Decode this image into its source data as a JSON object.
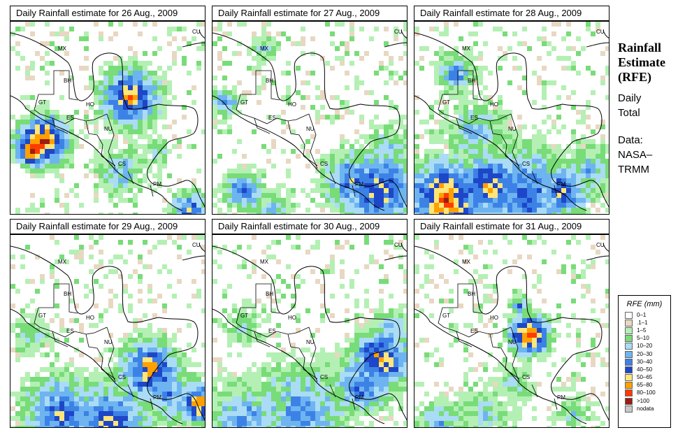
{
  "panels": [
    {
      "title": "Daily Rainfall estimate for  26 Aug., 2009"
    },
    {
      "title": "Daily Rainfall estimate for  27 Aug., 2009"
    },
    {
      "title": "Daily Rainfall estimate for  28 Aug., 2009"
    },
    {
      "title": "Daily Rainfall estimate for  29 Aug., 2009"
    },
    {
      "title": "Daily Rainfall estimate for  30 Aug., 2009"
    },
    {
      "title": "Daily Rainfall estimate for  31 Aug., 2009"
    }
  ],
  "country_labels": [
    "MX",
    "CU",
    "BH",
    "GT",
    "HO",
    "ES",
    "NU",
    "CS",
    "PM"
  ],
  "side": {
    "title_lines": [
      "Rainfall",
      "Estimate",
      "(RFE)"
    ],
    "daily_lines": [
      "Daily",
      "Total"
    ],
    "data_lines": [
      "Data:",
      "NASA–",
      "TRMM"
    ]
  },
  "legend": {
    "title": "RFE (mm)",
    "items": [
      {
        "label": "0–1",
        "color": "#ffffff"
      },
      {
        "label": ".1–1",
        "color": "#e8d8c2"
      },
      {
        "label": "1–5",
        "color": "#b4f0b4"
      },
      {
        "label": "5–10",
        "color": "#78dc78"
      },
      {
        "label": "10–20",
        "color": "#aadcf5"
      },
      {
        "label": "20–30",
        "color": "#6eb4f0"
      },
      {
        "label": "30–40",
        "color": "#3c82e6"
      },
      {
        "label": "40–50",
        "color": "#1e46c8"
      },
      {
        "label": "50–65",
        "color": "#ffe678"
      },
      {
        "label": "65–80",
        "color": "#ffa000"
      },
      {
        "label": "80–100",
        "color": "#ff3c00"
      },
      {
        "label": ">100",
        "color": "#9b1e14"
      },
      {
        "label": "nodata",
        "color": "#c8c8c8"
      }
    ]
  }
}
